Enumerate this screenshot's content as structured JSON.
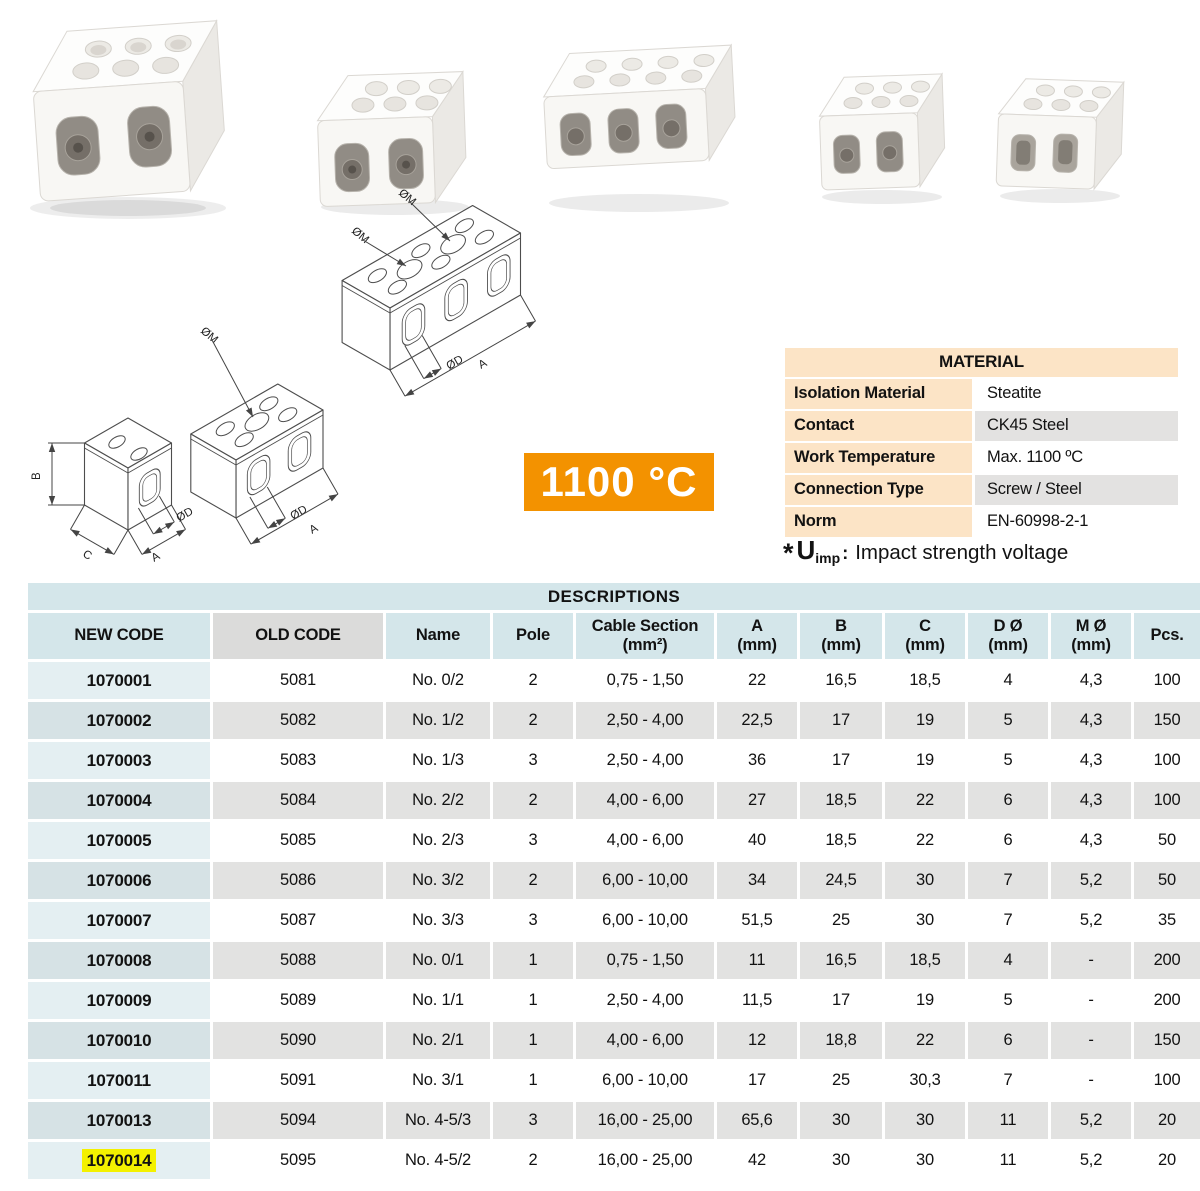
{
  "badge": {
    "text": "1100 °C"
  },
  "colors": {
    "accent_orange": "#f39200",
    "highlight_yellow": "#f4f100",
    "header_blue": "#d4e6ea",
    "new_code_blue": "#e4eff2",
    "row_gray": "#e2e2e1",
    "peach": "#fce4c6"
  },
  "material_table": {
    "title": "MATERIAL",
    "rows": [
      {
        "label": "Isolation Material",
        "value": "Steatite"
      },
      {
        "label": "Contact",
        "value": "CK45 Steel"
      },
      {
        "label": "Work Temperature",
        "value": "Max. 1100 ºC"
      },
      {
        "label": "Connection Type",
        "value": "Screw / Steel"
      },
      {
        "label": "Norm",
        "value": "EN-60998-2-1"
      }
    ]
  },
  "note": {
    "prefix": "*",
    "symbol": "U",
    "subscript": "imp",
    "separator": ":",
    "text": "Impact strength voltage"
  },
  "drawing_labels": {
    "om": "ØM",
    "od": "ØD",
    "a": "A",
    "b": "B",
    "c": "C"
  },
  "descriptions_table": {
    "title": "DESCRIPTIONS",
    "headers": [
      [
        "NEW CODE"
      ],
      [
        "OLD CODE"
      ],
      [
        "Name"
      ],
      [
        "Pole"
      ],
      [
        "Cable Section",
        "(mm²)"
      ],
      [
        "A",
        "(mm)"
      ],
      [
        "B",
        "(mm)"
      ],
      [
        "C",
        "(mm)"
      ],
      [
        "D Ø",
        "(mm)"
      ],
      [
        "M Ø",
        "(mm)"
      ],
      [
        "Pcs."
      ]
    ],
    "highlighted_new_code": "1070014",
    "rows": [
      [
        "1070001",
        "5081",
        "No. 0/2",
        "2",
        "0,75 - 1,50",
        "22",
        "16,5",
        "18,5",
        "4",
        "4,3",
        "100"
      ],
      [
        "1070002",
        "5082",
        "No. 1/2",
        "2",
        "2,50 - 4,00",
        "22,5",
        "17",
        "19",
        "5",
        "4,3",
        "150"
      ],
      [
        "1070003",
        "5083",
        "No. 1/3",
        "3",
        "2,50 - 4,00",
        "36",
        "17",
        "19",
        "5",
        "4,3",
        "100"
      ],
      [
        "1070004",
        "5084",
        "No. 2/2",
        "2",
        "4,00 - 6,00",
        "27",
        "18,5",
        "22",
        "6",
        "4,3",
        "100"
      ],
      [
        "1070005",
        "5085",
        "No. 2/3",
        "3",
        "4,00 - 6,00",
        "40",
        "18,5",
        "22",
        "6",
        "4,3",
        "50"
      ],
      [
        "1070006",
        "5086",
        "No. 3/2",
        "2",
        "6,00 - 10,00",
        "34",
        "24,5",
        "30",
        "7",
        "5,2",
        "50"
      ],
      [
        "1070007",
        "5087",
        "No. 3/3",
        "3",
        "6,00 - 10,00",
        "51,5",
        "25",
        "30",
        "7",
        "5,2",
        "35"
      ],
      [
        "1070008",
        "5088",
        "No. 0/1",
        "1",
        "0,75 - 1,50",
        "11",
        "16,5",
        "18,5",
        "4",
        "-",
        "200"
      ],
      [
        "1070009",
        "5089",
        "No. 1/1",
        "1",
        "2,50 - 4,00",
        "11,5",
        "17",
        "19",
        "5",
        "-",
        "200"
      ],
      [
        "1070010",
        "5090",
        "No. 2/1",
        "1",
        "4,00 - 6,00",
        "12",
        "18,8",
        "22",
        "6",
        "-",
        "150"
      ],
      [
        "1070011",
        "5091",
        "No. 3/1",
        "1",
        "6,00 - 10,00",
        "17",
        "25",
        "30,3",
        "7",
        "-",
        "100"
      ],
      [
        "1070013",
        "5094",
        "No. 4-5/3",
        "3",
        "16,00 - 25,00",
        "65,6",
        "30",
        "30",
        "11",
        "5,2",
        "20"
      ],
      [
        "1070014",
        "5095",
        "No. 4-5/2",
        "2",
        "16,00 - 25,00",
        "42",
        "30",
        "30",
        "11",
        "5,2",
        "20"
      ]
    ]
  }
}
